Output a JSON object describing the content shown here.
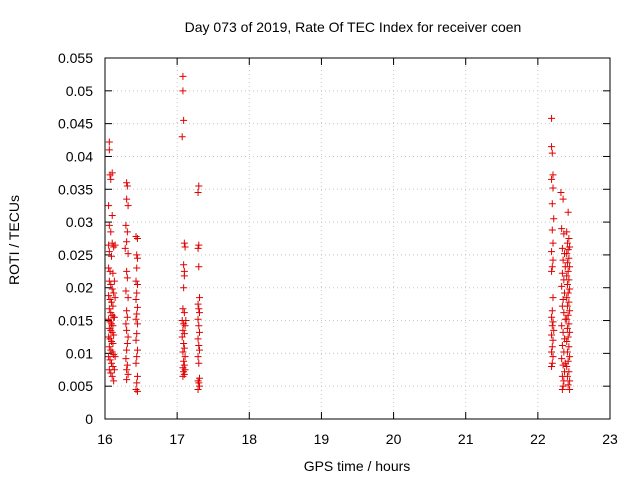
{
  "chart_data": {
    "type": "scatter",
    "title": "Day 073 of 2019, Rate Of TEC Index for receiver coen",
    "xlabel": "GPS time / hours",
    "ylabel": "ROTI / TECUs",
    "xlim": [
      16,
      23
    ],
    "ylim": [
      0,
      0.055
    ],
    "xticks": [
      16,
      17,
      18,
      19,
      20,
      21,
      22,
      23
    ],
    "yticks": [
      0,
      0.005,
      0.01,
      0.015,
      0.02,
      0.025,
      0.03,
      0.035,
      0.04,
      0.045,
      0.05,
      0.055
    ],
    "ytick_labels": [
      "0",
      "0.005",
      "0.01",
      "0.015",
      "0.02",
      "0.025",
      "0.03",
      "0.035",
      "0.04",
      "0.045",
      "0.05",
      "0.055"
    ],
    "grid": true,
    "marker": "+",
    "color": "#e00000",
    "series": [
      {
        "name": "ROTI",
        "points": [
          [
            16.06,
            0.0422
          ],
          [
            16.06,
            0.041
          ],
          [
            16.07,
            0.0372
          ],
          [
            16.08,
            0.0365
          ],
          [
            16.1,
            0.0375
          ],
          [
            16.05,
            0.0325
          ],
          [
            16.1,
            0.031
          ],
          [
            16.06,
            0.0295
          ],
          [
            16.08,
            0.0285
          ],
          [
            16.05,
            0.0265
          ],
          [
            16.1,
            0.0268
          ],
          [
            16.12,
            0.0262
          ],
          [
            16.06,
            0.0255
          ],
          [
            16.09,
            0.0248
          ],
          [
            16.05,
            0.023
          ],
          [
            16.07,
            0.0225
          ],
          [
            16.11,
            0.0222
          ],
          [
            16.06,
            0.021
          ],
          [
            16.08,
            0.0205
          ],
          [
            16.1,
            0.0198
          ],
          [
            16.12,
            0.0192
          ],
          [
            16.05,
            0.0188
          ],
          [
            16.07,
            0.0182
          ],
          [
            16.09,
            0.0178
          ],
          [
            16.11,
            0.0172
          ],
          [
            16.06,
            0.0168
          ],
          [
            16.08,
            0.0162
          ],
          [
            16.1,
            0.0158
          ],
          [
            16.12,
            0.0155
          ],
          [
            16.05,
            0.0152
          ],
          [
            16.07,
            0.0148
          ],
          [
            16.09,
            0.0145
          ],
          [
            16.11,
            0.0142
          ],
          [
            16.06,
            0.0138
          ],
          [
            16.08,
            0.0135
          ],
          [
            16.1,
            0.0132
          ],
          [
            16.12,
            0.0128
          ],
          [
            16.05,
            0.0125
          ],
          [
            16.07,
            0.0122
          ],
          [
            16.09,
            0.0118
          ],
          [
            16.11,
            0.0115
          ],
          [
            16.06,
            0.011
          ],
          [
            16.08,
            0.0105
          ],
          [
            16.1,
            0.0102
          ],
          [
            16.12,
            0.0098
          ],
          [
            16.05,
            0.0095
          ],
          [
            16.07,
            0.009
          ],
          [
            16.09,
            0.0085
          ],
          [
            16.11,
            0.008
          ],
          [
            16.06,
            0.0075
          ],
          [
            16.08,
            0.007
          ],
          [
            16.1,
            0.0065
          ],
          [
            16.12,
            0.0058
          ],
          [
            16.13,
            0.0075
          ],
          [
            16.14,
            0.0095
          ],
          [
            16.13,
            0.0155
          ],
          [
            16.14,
            0.0185
          ],
          [
            16.13,
            0.021
          ],
          [
            16.14,
            0.0265
          ],
          [
            16.3,
            0.036
          ],
          [
            16.31,
            0.0355
          ],
          [
            16.3,
            0.0335
          ],
          [
            16.32,
            0.0325
          ],
          [
            16.29,
            0.0295
          ],
          [
            16.31,
            0.0285
          ],
          [
            16.3,
            0.027
          ],
          [
            16.28,
            0.026
          ],
          [
            16.32,
            0.0252
          ],
          [
            16.3,
            0.0225
          ],
          [
            16.31,
            0.0215
          ],
          [
            16.29,
            0.0195
          ],
          [
            16.32,
            0.0185
          ],
          [
            16.3,
            0.0165
          ],
          [
            16.31,
            0.0155
          ],
          [
            16.29,
            0.0145
          ],
          [
            16.3,
            0.0135
          ],
          [
            16.32,
            0.0125
          ],
          [
            16.31,
            0.0115
          ],
          [
            16.3,
            0.0105
          ],
          [
            16.29,
            0.0092
          ],
          [
            16.31,
            0.0082
          ],
          [
            16.3,
            0.0075
          ],
          [
            16.32,
            0.0068
          ],
          [
            16.3,
            0.006
          ],
          [
            16.43,
            0.0278
          ],
          [
            16.45,
            0.0275
          ],
          [
            16.44,
            0.025
          ],
          [
            16.45,
            0.0245
          ],
          [
            16.44,
            0.023
          ],
          [
            16.43,
            0.021
          ],
          [
            16.45,
            0.0205
          ],
          [
            16.44,
            0.0192
          ],
          [
            16.43,
            0.0182
          ],
          [
            16.45,
            0.017
          ],
          [
            16.44,
            0.016
          ],
          [
            16.43,
            0.0152
          ],
          [
            16.45,
            0.0145
          ],
          [
            16.44,
            0.013
          ],
          [
            16.43,
            0.012
          ],
          [
            16.45,
            0.0105
          ],
          [
            16.44,
            0.0095
          ],
          [
            16.43,
            0.0085
          ],
          [
            16.45,
            0.0065
          ],
          [
            16.44,
            0.0055
          ],
          [
            16.43,
            0.0045
          ],
          [
            16.45,
            0.0042
          ],
          [
            17.08,
            0.0522
          ],
          [
            17.08,
            0.05
          ],
          [
            17.09,
            0.0455
          ],
          [
            17.07,
            0.043
          ],
          [
            17.1,
            0.0268
          ],
          [
            17.11,
            0.0262
          ],
          [
            17.09,
            0.0235
          ],
          [
            17.1,
            0.0225
          ],
          [
            17.1,
            0.0218
          ],
          [
            17.09,
            0.02
          ],
          [
            17.08,
            0.0168
          ],
          [
            17.1,
            0.0162
          ],
          [
            17.07,
            0.015
          ],
          [
            17.09,
            0.0145
          ],
          [
            17.11,
            0.0142
          ],
          [
            17.08,
            0.0135
          ],
          [
            17.1,
            0.013
          ],
          [
            17.07,
            0.0125
          ],
          [
            17.12,
            0.015
          ],
          [
            17.09,
            0.0115
          ],
          [
            17.1,
            0.0108
          ],
          [
            17.08,
            0.0102
          ],
          [
            17.11,
            0.0095
          ],
          [
            17.09,
            0.0088
          ],
          [
            17.1,
            0.0082
          ],
          [
            17.08,
            0.0078
          ],
          [
            17.11,
            0.0075
          ],
          [
            17.09,
            0.0072
          ],
          [
            17.1,
            0.0068
          ],
          [
            17.08,
            0.0065
          ],
          [
            17.3,
            0.0355
          ],
          [
            17.29,
            0.0345
          ],
          [
            17.3,
            0.0265
          ],
          [
            17.29,
            0.026
          ],
          [
            17.3,
            0.0232
          ],
          [
            17.31,
            0.0185
          ],
          [
            17.29,
            0.0175
          ],
          [
            17.3,
            0.0168
          ],
          [
            17.31,
            0.0162
          ],
          [
            17.29,
            0.0152
          ],
          [
            17.3,
            0.0142
          ],
          [
            17.31,
            0.0132
          ],
          [
            17.29,
            0.0122
          ],
          [
            17.3,
            0.0112
          ],
          [
            17.31,
            0.0105
          ],
          [
            17.29,
            0.0095
          ],
          [
            17.3,
            0.0085
          ],
          [
            17.31,
            0.0062
          ],
          [
            17.29,
            0.0058
          ],
          [
            17.3,
            0.0055
          ],
          [
            17.31,
            0.005
          ],
          [
            17.29,
            0.0045
          ],
          [
            22.19,
            0.0458
          ],
          [
            22.19,
            0.0415
          ],
          [
            22.2,
            0.0405
          ],
          [
            22.21,
            0.0372
          ],
          [
            22.19,
            0.0365
          ],
          [
            22.21,
            0.0352
          ],
          [
            22.2,
            0.0328
          ],
          [
            22.22,
            0.0305
          ],
          [
            22.2,
            0.0288
          ],
          [
            22.21,
            0.0268
          ],
          [
            22.19,
            0.0255
          ],
          [
            22.21,
            0.0242
          ],
          [
            22.2,
            0.0232
          ],
          [
            22.19,
            0.0225
          ],
          [
            22.21,
            0.0185
          ],
          [
            22.2,
            0.0165
          ],
          [
            22.19,
            0.0155
          ],
          [
            22.21,
            0.0148
          ],
          [
            22.2,
            0.0142
          ],
          [
            22.22,
            0.0135
          ],
          [
            22.19,
            0.0128
          ],
          [
            22.21,
            0.012
          ],
          [
            22.2,
            0.011
          ],
          [
            22.19,
            0.0102
          ],
          [
            22.21,
            0.0095
          ],
          [
            22.2,
            0.0085
          ],
          [
            22.19,
            0.008
          ],
          [
            22.32,
            0.0345
          ],
          [
            22.35,
            0.0335
          ],
          [
            22.33,
            0.029
          ],
          [
            22.36,
            0.0282
          ],
          [
            22.34,
            0.026
          ],
          [
            22.37,
            0.0252
          ],
          [
            22.35,
            0.0242
          ],
          [
            22.38,
            0.0232
          ],
          [
            22.34,
            0.0222
          ],
          [
            22.36,
            0.0212
          ],
          [
            22.33,
            0.0202
          ],
          [
            22.37,
            0.0192
          ],
          [
            22.35,
            0.0182
          ],
          [
            22.34,
            0.0172
          ],
          [
            22.36,
            0.0162
          ],
          [
            22.38,
            0.0152
          ],
          [
            22.33,
            0.0142
          ],
          [
            22.35,
            0.0132
          ],
          [
            22.37,
            0.0122
          ],
          [
            22.34,
            0.0112
          ],
          [
            22.36,
            0.0102
          ],
          [
            22.33,
            0.0092
          ],
          [
            22.35,
            0.0082
          ],
          [
            22.37,
            0.0072
          ],
          [
            22.34,
            0.0065
          ],
          [
            22.36,
            0.0058
          ],
          [
            22.35,
            0.005
          ],
          [
            22.34,
            0.0045
          ],
          [
            22.38,
            0.0085
          ],
          [
            22.42,
            0.0315
          ],
          [
            22.4,
            0.0285
          ],
          [
            22.43,
            0.0275
          ],
          [
            22.41,
            0.0268
          ],
          [
            22.44,
            0.0262
          ],
          [
            22.42,
            0.0258
          ],
          [
            22.4,
            0.0252
          ],
          [
            22.43,
            0.0245
          ],
          [
            22.41,
            0.0238
          ],
          [
            22.44,
            0.0232
          ],
          [
            22.42,
            0.0225
          ],
          [
            22.4,
            0.0218
          ],
          [
            22.43,
            0.0212
          ],
          [
            22.41,
            0.0205
          ],
          [
            22.44,
            0.0198
          ],
          [
            22.42,
            0.0192
          ],
          [
            22.4,
            0.0185
          ],
          [
            22.43,
            0.0178
          ],
          [
            22.41,
            0.0172
          ],
          [
            22.44,
            0.0165
          ],
          [
            22.42,
            0.0158
          ],
          [
            22.4,
            0.0152
          ],
          [
            22.43,
            0.0145
          ],
          [
            22.41,
            0.0138
          ],
          [
            22.44,
            0.0132
          ],
          [
            22.42,
            0.0125
          ],
          [
            22.4,
            0.0118
          ],
          [
            22.43,
            0.011
          ],
          [
            22.41,
            0.0102
          ],
          [
            22.44,
            0.0095
          ],
          [
            22.42,
            0.0088
          ],
          [
            22.4,
            0.008
          ],
          [
            22.43,
            0.0072
          ],
          [
            22.41,
            0.0065
          ],
          [
            22.44,
            0.0058
          ],
          [
            22.42,
            0.0052
          ],
          [
            22.44,
            0.0045
          ]
        ]
      }
    ]
  }
}
